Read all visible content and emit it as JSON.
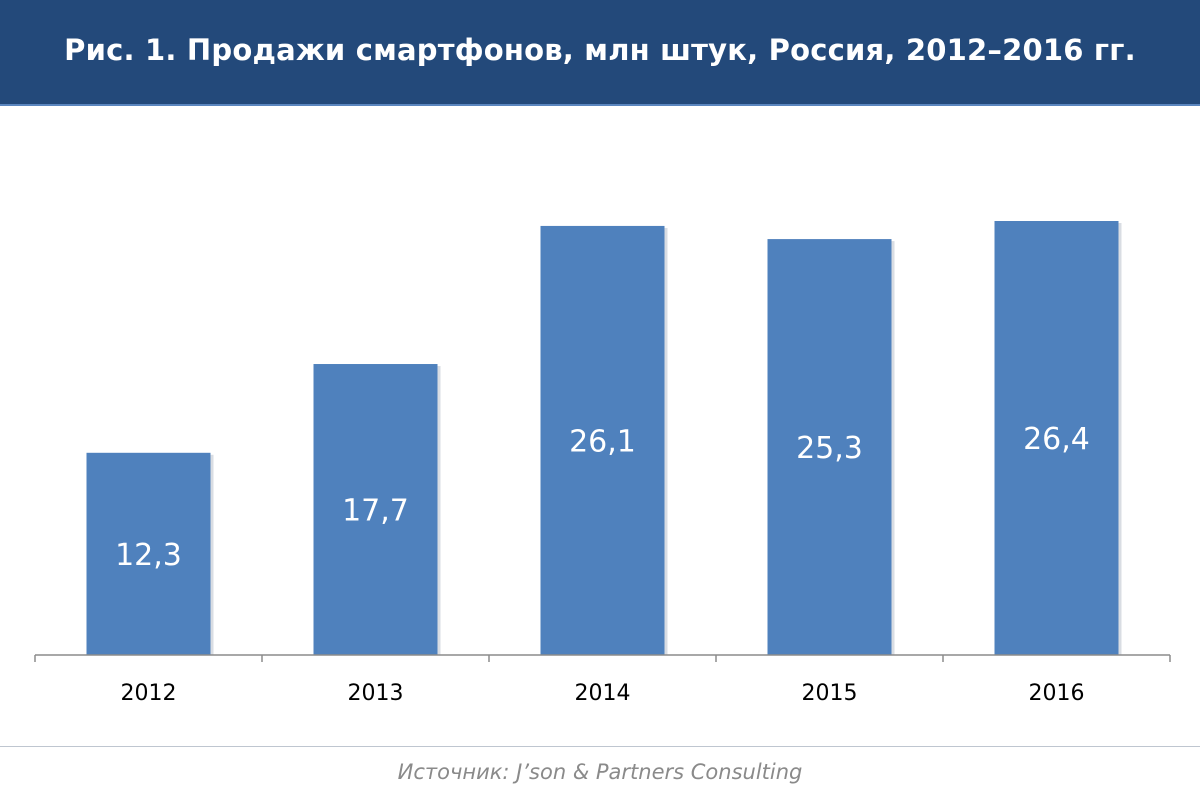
{
  "header": {
    "title": "Рис. 1. Продажи смартфонов, млн штук, Россия, 2012–2016 гг."
  },
  "footer": {
    "source": "Источник: J’son & Partners Consulting"
  },
  "colors": {
    "header_background": "#23497a",
    "bar_fill": "#4f81bd",
    "bar_label": "#ffffff",
    "axis": "#8c8c8c",
    "source_text": "#8a8a8a"
  },
  "chart_data": {
    "type": "bar",
    "title": "Рис. 1. Продажи смартфонов, млн штук, Россия, 2012–2016 гг.",
    "categories": [
      "2012",
      "2013",
      "2014",
      "2015",
      "2016"
    ],
    "values": [
      12.3,
      17.7,
      26.1,
      25.3,
      26.4
    ],
    "value_labels": [
      "12,3",
      "17,7",
      "26,1",
      "25,3",
      "26,4"
    ],
    "xlabel": "",
    "ylabel": "",
    "ylim": [
      0,
      26.4
    ],
    "grid": false,
    "legend": "none",
    "data_labels": "inside"
  }
}
